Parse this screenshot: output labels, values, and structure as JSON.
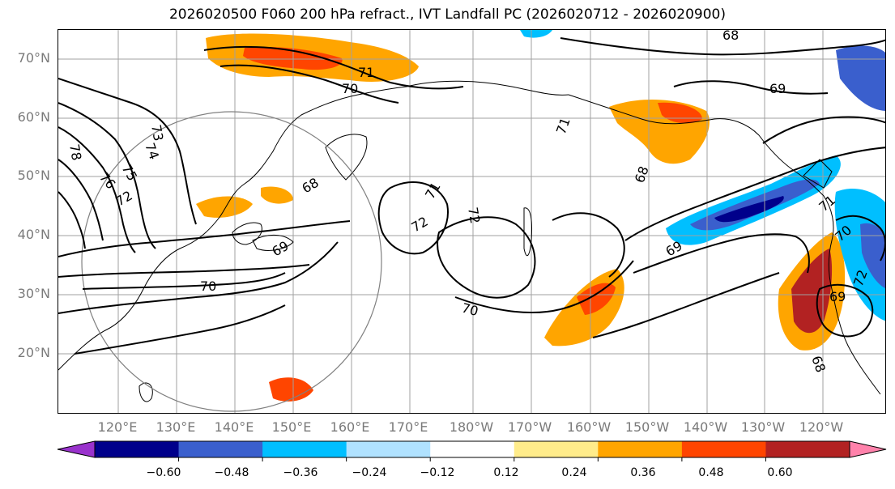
{
  "title": "2026020500 F060 200 hPa refract., IVT Landfall PC (2026020712 - 2026020900)",
  "lat_labels": [
    "70°N",
    "60°N",
    "50°N",
    "40°N",
    "30°N",
    "20°N"
  ],
  "lon_labels": [
    "120°E",
    "130°E",
    "140°E",
    "150°E",
    "160°E",
    "170°E",
    "180°W",
    "170°W",
    "160°W",
    "150°W",
    "140°W",
    "130°W",
    "120°W"
  ],
  "contour_labels": [
    "68",
    "71",
    "70",
    "69",
    "73",
    "74",
    "75",
    "76",
    "78",
    "72",
    "71",
    "72",
    "72",
    "68",
    "71",
    "69",
    "70",
    "68",
    "70",
    "69",
    "70",
    "71",
    "68",
    "69",
    "72"
  ],
  "colorbar": {
    "colors": [
      "#9932cc",
      "#00008b",
      "#3a5fcd",
      "#00bfff",
      "#b0e2ff",
      "#ffffff",
      "#ffec8b",
      "#ffa500",
      "#ff4500",
      "#b22222",
      "#ff82ab"
    ],
    "tick_labels": [
      "−0.60",
      "−0.48",
      "−0.36",
      "−0.24",
      "−0.12",
      "0.12",
      "0.24",
      "0.36",
      "0.48",
      "0.60"
    ]
  }
}
